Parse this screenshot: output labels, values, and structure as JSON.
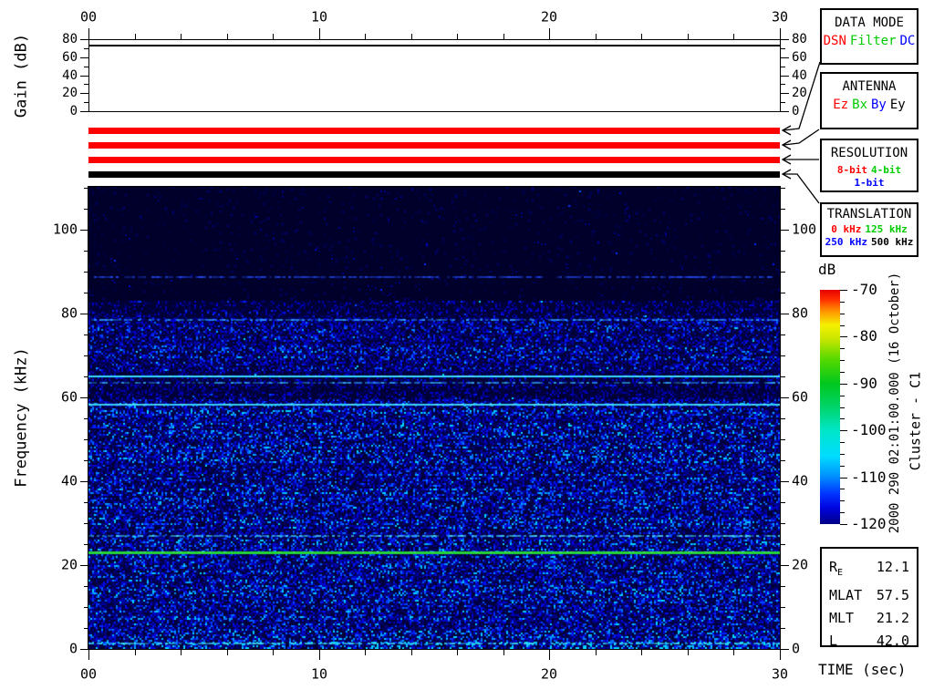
{
  "annotations": {
    "datetime": "2000 290 02:01:00.000 (16 October)",
    "spacecraft": "Cluster - C1",
    "time_axis_label": "TIME (sec)"
  },
  "time_axis": {
    "label": "TIME (sec)",
    "tick_labels": [
      "00",
      "10",
      "20",
      "30"
    ],
    "tick_values": [
      0,
      10,
      20,
      30
    ],
    "minor_ticks": [
      2,
      4,
      6,
      8,
      12,
      14,
      16,
      18,
      22,
      24,
      26,
      28
    ],
    "lim": [
      0,
      30
    ]
  },
  "gain_axis": {
    "label": "Gain (dB)",
    "tick_labels": [
      "0",
      "20",
      "40",
      "60",
      "80"
    ],
    "tick_values": [
      0,
      20,
      40,
      60,
      80
    ],
    "minor_ticks": [
      10,
      30,
      50,
      70
    ],
    "lim": [
      0,
      80
    ]
  },
  "freq_axis": {
    "label": "Frequency (kHz)",
    "tick_labels": [
      "0",
      "20",
      "40",
      "60",
      "80",
      "100"
    ],
    "tick_values": [
      0,
      20,
      40,
      60,
      80,
      100
    ],
    "minor_ticks": [
      5,
      10,
      15,
      25,
      30,
      35,
      45,
      50,
      55,
      65,
      70,
      75,
      85,
      90,
      95,
      105,
      110
    ],
    "lim": [
      0,
      110.25
    ]
  },
  "colorbar_axis": {
    "label": "dB",
    "tick_labels": [
      "-70",
      "-80",
      "-90",
      "-100",
      "-110",
      "-120"
    ],
    "tick_values": [
      -70,
      -80,
      -90,
      -100,
      -110,
      -120
    ],
    "minor_step": 2.5,
    "lim": [
      -120,
      -70
    ]
  },
  "legend_boxes": [
    {
      "title": "DATA MODE",
      "items": [
        {
          "label": "DSN",
          "color": "#ff0000"
        },
        {
          "label": "Filter",
          "color": "#00cc00"
        },
        {
          "label": "DC",
          "color": "#0000ff"
        }
      ]
    },
    {
      "title": "ANTENNA",
      "items": [
        {
          "label": "Ez",
          "color": "#ff0000"
        },
        {
          "label": "Bx",
          "color": "#00cc00"
        },
        {
          "label": "By",
          "color": "#0000ff"
        },
        {
          "label": "Ey",
          "color": "#000000"
        }
      ]
    },
    {
      "title": "RESOLUTION",
      "items": [
        {
          "label": "8-bit",
          "color": "#ff0000"
        },
        {
          "label": "4-bit",
          "color": "#00cc00"
        },
        {
          "label": "1-bit",
          "color": "#0000ff"
        }
      ]
    },
    {
      "title": "TRANSLATION",
      "items": [
        {
          "label": "0 kHz",
          "color": "#ff0000"
        },
        {
          "label": "125 kHz",
          "color": "#00cc00"
        },
        {
          "label": "250 kHz",
          "color": "#0000ff"
        },
        {
          "label": "500 kHz",
          "color": "#000000"
        }
      ]
    }
  ],
  "info_table": {
    "rows": [
      {
        "label": "R",
        "sub": "E",
        "value": "12.1"
      },
      {
        "label": "MLAT",
        "sub": "",
        "value": "57.5"
      },
      {
        "label": "MLT",
        "sub": "",
        "value": "21.2"
      },
      {
        "label": "L",
        "sub": "",
        "value": "42.0"
      }
    ]
  },
  "colors": {
    "accent_red": "#ff0000",
    "accent_green": "#00cc00",
    "accent_blue": "#0000ff",
    "black": "#000000",
    "spectrogram_background": "#000134",
    "spectrogram_dark_band": "#00002a",
    "colorbar_stops": [
      {
        "p": 0,
        "c": "#000086"
      },
      {
        "p": 7,
        "c": "#0004e0"
      },
      {
        "p": 13,
        "c": "#0035ff"
      },
      {
        "p": 21,
        "c": "#0096ff"
      },
      {
        "p": 29,
        "c": "#00dcff"
      },
      {
        "p": 40,
        "c": "#00e6c8"
      },
      {
        "p": 50,
        "c": "#00d469"
      },
      {
        "p": 60,
        "c": "#00c81e"
      },
      {
        "p": 70,
        "c": "#52d800"
      },
      {
        "p": 79,
        "c": "#c8e600"
      },
      {
        "p": 85,
        "c": "#f5f000"
      },
      {
        "p": 91,
        "c": "#ff9100"
      },
      {
        "p": 96,
        "c": "#ff2d00"
      },
      {
        "p": 100,
        "c": "#e60000"
      }
    ]
  },
  "chart_data": {
    "type": "heatmap",
    "title": "Cluster C1 WBD wideband spectrogram, 2000-290 (16 October) 02:01:00.000, 30 s sweep",
    "gain_series": {
      "type": "line",
      "ylabel": "Gain (dB)",
      "ylim": [
        0,
        80
      ],
      "x": [
        0,
        30
      ],
      "y": [
        73,
        73
      ]
    },
    "status_bars": [
      {
        "name": "data-mode",
        "color": "#ff0000",
        "meaning": "DSN"
      },
      {
        "name": "antenna",
        "color": "#ff0000",
        "meaning": "Ez"
      },
      {
        "name": "resolution",
        "color": "#ff0000",
        "meaning": "8-bit"
      },
      {
        "name": "translation",
        "color": "#000000",
        "meaning": "500 kHz"
      }
    ],
    "spectrogram": {
      "xlabel": "TIME (sec)",
      "ylabel": "Frequency (kHz)",
      "zlabel": "dB",
      "xlim": [
        0,
        30
      ],
      "ylim": [
        0,
        110.25
      ],
      "zlim": [
        -120,
        -70
      ],
      "noise_bands": [
        {
          "f0": 83,
          "f1": 110.25,
          "density": 0.06,
          "brightness": 0.16
        },
        {
          "f0": 79,
          "f1": 83,
          "density": 0.5,
          "brightness": 0.3
        },
        {
          "f0": 66,
          "f1": 79,
          "density": 0.85,
          "brightness": 0.42
        },
        {
          "f0": 59.5,
          "f1": 66,
          "density": 0.6,
          "brightness": 0.3
        },
        {
          "f0": 3,
          "f1": 59.5,
          "density": 0.93,
          "brightness": 0.48
        },
        {
          "f0": 0,
          "f1": 3,
          "density": 0.95,
          "brightness": 0.6
        }
      ],
      "spectral_lines": [
        {
          "freq": 89,
          "color": "#1e46e6",
          "solid": false,
          "width": 2
        },
        {
          "freq": 78.8,
          "color": "#2e9cff",
          "solid": false,
          "width": 2
        },
        {
          "freq": 65.3,
          "color": "#37d8ff",
          "solid": true,
          "width": 2
        },
        {
          "freq": 63.8,
          "color": "#2f9fe8",
          "solid": false,
          "width": 2
        },
        {
          "freq": 58.6,
          "color": "#37cdf0",
          "solid": true,
          "width": 2
        },
        {
          "freq": 27.2,
          "color": "#45d0f0",
          "solid": false,
          "width": 2
        },
        {
          "freq": 23.3,
          "color": "#26d437",
          "solid": true,
          "width": 3
        },
        {
          "freq": 1.5,
          "color": "#3cd8f0",
          "solid": false,
          "width": 2
        }
      ]
    }
  }
}
